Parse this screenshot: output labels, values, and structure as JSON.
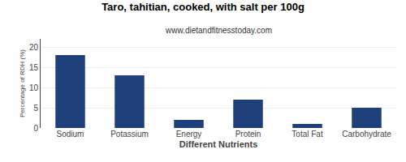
{
  "chart_data": {
    "type": "bar",
    "title": "Taro, tahitian, cooked, with salt per 100g",
    "subtitle": "www.dietandfitnesstoday.com",
    "xlabel": "Different Nutrients",
    "ylabel": "Percentage of RDH (%)",
    "categories": [
      "Sodium",
      "Potassium",
      "Energy",
      "Protein",
      "Total Fat",
      "Carbohydrate"
    ],
    "values": [
      18,
      13,
      2,
      7,
      1,
      5
    ],
    "color": "#1f3f7a",
    "ylim": [
      0,
      22
    ],
    "yticks": [
      0,
      5,
      10,
      15,
      20
    ],
    "grid": true
  }
}
